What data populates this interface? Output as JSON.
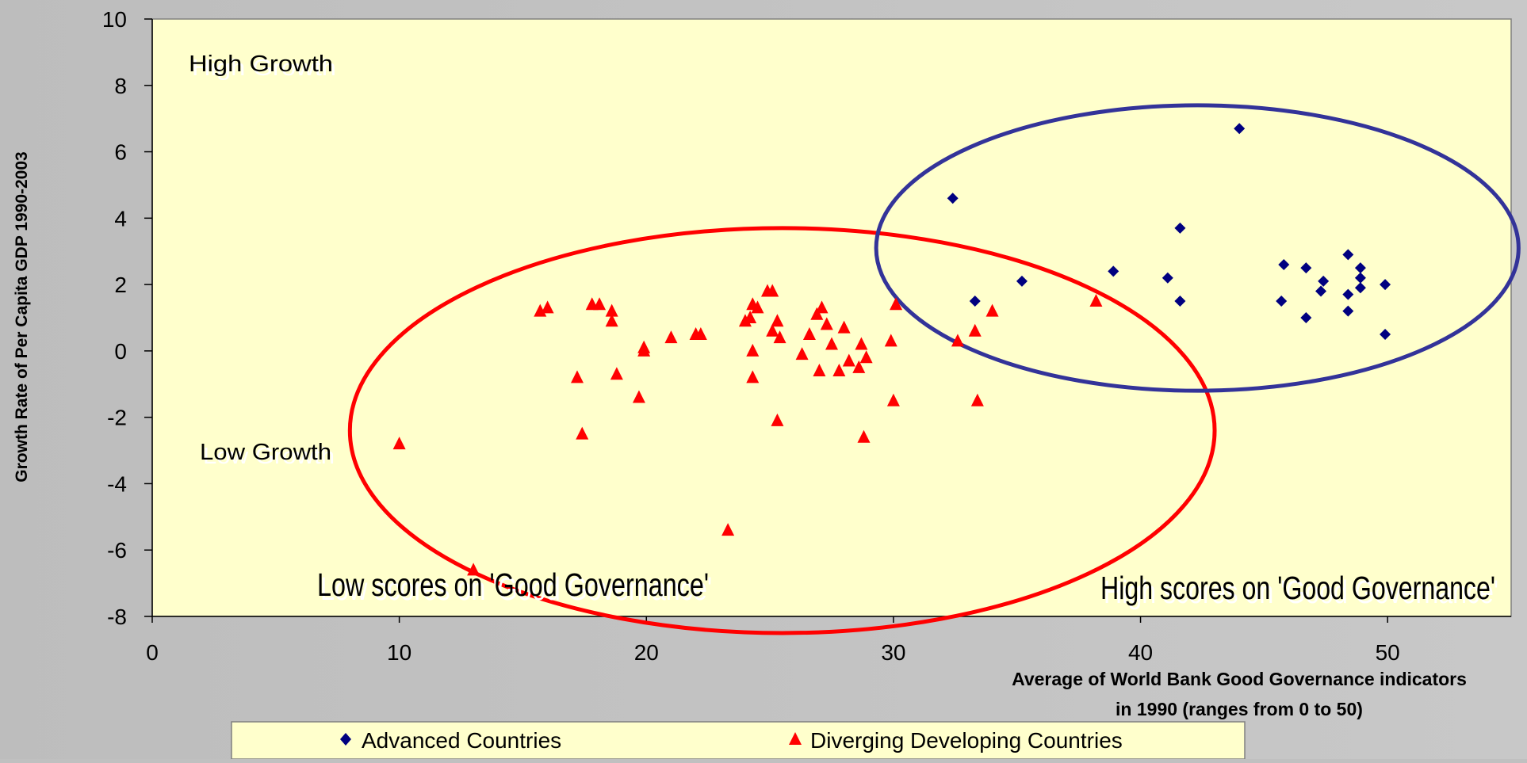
{
  "chart_data": {
    "type": "scatter",
    "ylabel": "Growth Rate of Per Capita GDP 1990-2003",
    "xlabel_line1": "Average of World Bank Good Governance indicators",
    "xlabel_line2": "in 1990 (ranges from 0 to 50)",
    "xlim": [
      0,
      55
    ],
    "ylim": [
      -8,
      10
    ],
    "xticks": [
      0,
      10,
      20,
      30,
      40,
      50
    ],
    "yticks": [
      10,
      8,
      6,
      4,
      2,
      0,
      -2,
      -4,
      -6,
      -8
    ],
    "grid": false,
    "legend_position": "bottom",
    "plot_background": "#ffffcc",
    "annotations": {
      "high_growth": "High Growth",
      "low_growth": "Low Growth",
      "low_scores": "Low scores on 'Good Governance'",
      "high_scores": "High scores on 'Good Governance'"
    },
    "ellipses": [
      {
        "name": "developing",
        "color": "#ff0000",
        "cx": 25.5,
        "cy": -2.4,
        "rx": 17.5,
        "ry": 6.1
      },
      {
        "name": "advanced",
        "color": "#333399",
        "cx": 42.3,
        "cy": 3.1,
        "rx": 13.0,
        "ry": 4.3
      }
    ],
    "series": [
      {
        "name": "Advanced Countries",
        "marker": "diamond",
        "color": "#000080",
        "points": [
          [
            32.4,
            4.6
          ],
          [
            33.3,
            1.5
          ],
          [
            35.2,
            2.1
          ],
          [
            38.9,
            2.4
          ],
          [
            41.1,
            2.2
          ],
          [
            41.6,
            3.7
          ],
          [
            41.6,
            1.5
          ],
          [
            44.0,
            6.7
          ],
          [
            45.7,
            1.5
          ],
          [
            45.8,
            2.6
          ],
          [
            46.7,
            2.5
          ],
          [
            46.7,
            1.0
          ],
          [
            47.3,
            1.8
          ],
          [
            47.4,
            2.1
          ],
          [
            48.4,
            2.9
          ],
          [
            48.4,
            1.7
          ],
          [
            48.4,
            1.2
          ],
          [
            48.9,
            2.5
          ],
          [
            48.9,
            2.2
          ],
          [
            48.9,
            1.9
          ],
          [
            49.9,
            2.0
          ],
          [
            49.9,
            0.5
          ]
        ]
      },
      {
        "name": "Diverging Developing Countries",
        "marker": "triangle",
        "color": "#ff0000",
        "points": [
          [
            10.0,
            -2.8
          ],
          [
            13.0,
            -6.6
          ],
          [
            15.7,
            1.2
          ],
          [
            16.0,
            1.3
          ],
          [
            17.2,
            -0.8
          ],
          [
            17.4,
            -2.5
          ],
          [
            17.8,
            1.4
          ],
          [
            18.1,
            1.4
          ],
          [
            18.6,
            0.9
          ],
          [
            18.6,
            1.2
          ],
          [
            18.8,
            -0.7
          ],
          [
            19.7,
            -1.4
          ],
          [
            19.9,
            0.1
          ],
          [
            19.9,
            0.0
          ],
          [
            21.0,
            0.4
          ],
          [
            22.0,
            0.5
          ],
          [
            22.2,
            0.5
          ],
          [
            23.3,
            -5.4
          ],
          [
            24.0,
            0.9
          ],
          [
            24.2,
            1.0
          ],
          [
            24.3,
            1.4
          ],
          [
            24.3,
            0.0
          ],
          [
            24.3,
            -0.8
          ],
          [
            24.5,
            1.3
          ],
          [
            24.9,
            1.8
          ],
          [
            25.1,
            1.8
          ],
          [
            25.1,
            0.6
          ],
          [
            25.3,
            0.9
          ],
          [
            25.4,
            0.4
          ],
          [
            25.3,
            -2.1
          ],
          [
            26.3,
            -0.1
          ],
          [
            26.6,
            0.5
          ],
          [
            26.9,
            1.1
          ],
          [
            27.1,
            1.3
          ],
          [
            27.0,
            -0.6
          ],
          [
            27.3,
            0.8
          ],
          [
            27.5,
            0.2
          ],
          [
            27.8,
            -0.6
          ],
          [
            28.0,
            0.7
          ],
          [
            28.2,
            -0.3
          ],
          [
            28.6,
            -0.5
          ],
          [
            28.7,
            0.2
          ],
          [
            28.8,
            -2.6
          ],
          [
            28.9,
            -0.2
          ],
          [
            29.9,
            0.3
          ],
          [
            30.0,
            -1.5
          ],
          [
            30.1,
            1.4
          ],
          [
            32.6,
            0.3
          ],
          [
            33.3,
            0.6
          ],
          [
            33.4,
            -1.5
          ],
          [
            34.0,
            1.2
          ],
          [
            38.2,
            1.5
          ]
        ]
      }
    ]
  }
}
